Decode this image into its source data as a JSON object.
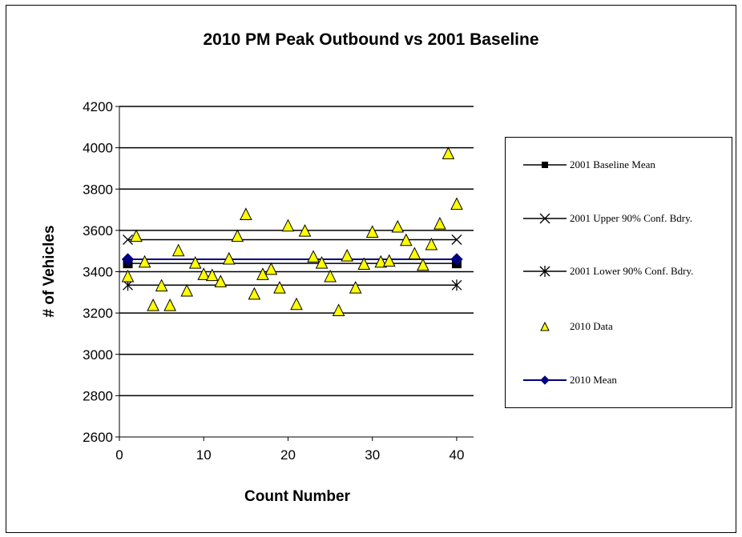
{
  "chart_data": {
    "type": "scatter",
    "title": "2010 PM Peak Outbound vs 2001 Baseline",
    "xlabel": "Count  Number",
    "ylabel": "# of Vehicles",
    "xlim": [
      0,
      42
    ],
    "ylim": [
      2600,
      4200
    ],
    "xticks": [
      0,
      10,
      20,
      30,
      40
    ],
    "yticks": [
      2600,
      2800,
      3000,
      3200,
      3400,
      3600,
      3800,
      4000,
      4200
    ],
    "grid": "horizontal",
    "legend_position": "right",
    "series": [
      {
        "name": "2001 Baseline Mean",
        "marker": "square",
        "color": "#000000",
        "x": [
          1,
          40
        ],
        "y": [
          3440,
          3440
        ]
      },
      {
        "name": "2001 Upper 90% Conf. Bdry.",
        "marker": "x",
        "color": "#000000",
        "x": [
          1,
          40
        ],
        "y": [
          3555,
          3555
        ]
      },
      {
        "name": "2001 Lower 90% Conf. Bdry.",
        "marker": "star",
        "color": "#000000",
        "x": [
          1,
          40
        ],
        "y": [
          3335,
          3335
        ]
      },
      {
        "name": "2010 Data",
        "marker": "triangle",
        "color": "#ffff00",
        "x": [
          1,
          2,
          3,
          4,
          5,
          6,
          7,
          8,
          9,
          10,
          11,
          12,
          13,
          14,
          15,
          16,
          17,
          18,
          19,
          20,
          21,
          22,
          23,
          24,
          25,
          26,
          27,
          28,
          29,
          30,
          31,
          32,
          33,
          34,
          35,
          36,
          37,
          38,
          39,
          40
        ],
        "y": [
          3375,
          3570,
          3445,
          3235,
          3330,
          3235,
          3500,
          3305,
          3440,
          3385,
          3380,
          3350,
          3460,
          3570,
          3675,
          3290,
          3385,
          3410,
          3320,
          3620,
          3240,
          3595,
          3470,
          3440,
          3375,
          3210,
          3475,
          3320,
          3435,
          3590,
          3445,
          3450,
          3615,
          3550,
          3485,
          3430,
          3530,
          3630,
          3970,
          3725
        ]
      },
      {
        "name": "2010 Mean",
        "marker": "diamond",
        "color": "#000080",
        "x": [
          1,
          40
        ],
        "y": [
          3460,
          3460
        ]
      }
    ]
  }
}
